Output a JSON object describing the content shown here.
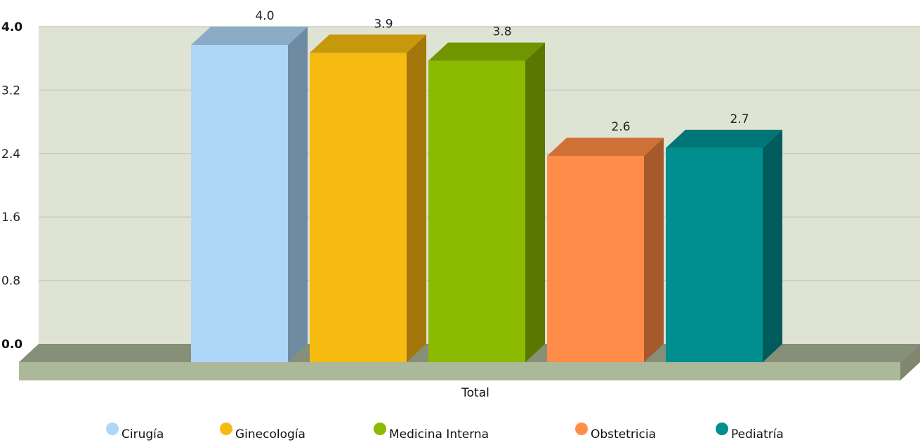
{
  "chart_data": {
    "type": "bar",
    "style": "3d-clustered",
    "categories": [
      "Total"
    ],
    "series": [
      {
        "name": "Cirugía",
        "values": [
          4.0
        ],
        "color": "#aed6f7",
        "side": "#6f8ba2",
        "top": "#8bacc6"
      },
      {
        "name": "Ginecología",
        "values": [
          3.9
        ],
        "color": "#f5bb10",
        "side": "#a37709",
        "top": "#c7980c"
      },
      {
        "name": "Medicina Interna",
        "values": [
          3.8
        ],
        "color": "#8cba00",
        "side": "#5a7800",
        "top": "#709500"
      },
      {
        "name": "Obstetricia",
        "values": [
          2.6
        ],
        "color": "#ff8c48",
        "side": "#a65a2c",
        "top": "#cf7036"
      },
      {
        "name": "Pediatría",
        "values": [
          2.7
        ],
        "color": "#008e8e",
        "side": "#005c5c",
        "top": "#007575"
      }
    ],
    "data_labels": [
      "4.0",
      "3.9",
      "3.8",
      "2.6",
      "2.7"
    ],
    "y_ticks": [
      "0.0",
      "0.8",
      "1.6",
      "2.4",
      "3.2",
      "4.0"
    ],
    "ylim": [
      0,
      4
    ],
    "title": "",
    "xlabel": "",
    "ylabel": "",
    "grid": true,
    "legend_position": "bottom",
    "colors": {
      "plot_background": "#dee3d4",
      "gridline": "#c8cfbd",
      "floor_top": "#868f78",
      "floor_front": "#abb99a"
    }
  }
}
